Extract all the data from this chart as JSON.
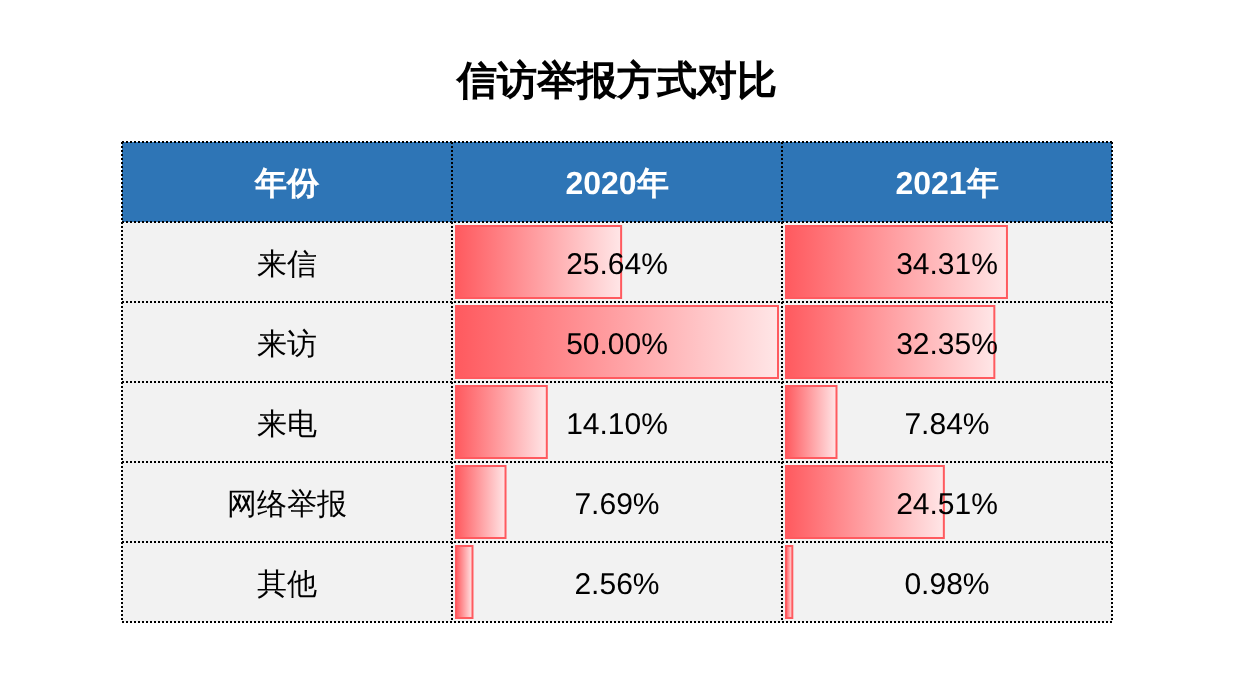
{
  "chart_data": [
    {
      "type": "bar",
      "orientation": "horizontal",
      "title": "信访举报方式对比",
      "ylabel": "年份",
      "categories": [
        "来信",
        "来访",
        "来电",
        "网络举报",
        "其他"
      ],
      "xlim": [
        0,
        50
      ],
      "tick_labels": "y",
      "series": [
        {
          "name": "2020年",
          "color": "#ff5a5f",
          "values": [
            25.64,
            50.0,
            14.1,
            7.69,
            2.56
          ],
          "value_labels": [
            "25.64%",
            "50.00%",
            "14.10%",
            "7.69%",
            "2.56%"
          ]
        }
      ]
    },
    {
      "type": "bar",
      "orientation": "horizontal",
      "categories": [
        null,
        null,
        null,
        null,
        null
      ],
      "xlim": [
        0,
        50
      ],
      "tick_labels": false,
      "series": [
        {
          "name": "2021年",
          "color": "#ff5a5f",
          "values": [
            34.31,
            32.35,
            7.84,
            24.51,
            0.98
          ],
          "value_labels": [
            "34.31%",
            "32.35%",
            "7.84%",
            "24.51%",
            "0.98%"
          ]
        }
      ]
    }
  ]
}
